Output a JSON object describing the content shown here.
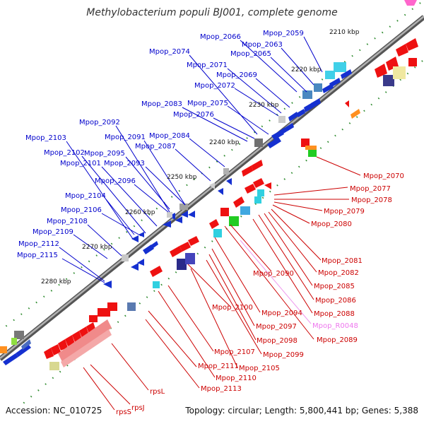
{
  "title": "Methylobacterium populi BJ001, complete genome",
  "accession": "Accession: NC_010725",
  "summary": "Topology: circular; Length: 5,800,441 bp; Genes: 5,388",
  "colors": {
    "forward_label": "#0000cc",
    "reverse_label": "#cc0000",
    "rna_label": "#ee77ee",
    "backbone": "#808080",
    "tick": "#2e8b2e"
  },
  "ticks": [
    "2210 kbp",
    "2220 kbp",
    "2230 kbp",
    "2240 kbp",
    "2250 kbp",
    "2260 kbp",
    "2270 kbp",
    "2280 kbp"
  ],
  "forward_labels": [
    "Mpop_2059",
    "Mpop_2063",
    "Mpop_2065",
    "Mpop_2066",
    "Mpop_2069",
    "Mpop_2071",
    "Mpop_2072",
    "Mpop_2074",
    "Mpop_2075",
    "Mpop_2076",
    "Mpop_2083",
    "Mpop_2084",
    "Mpop_2087",
    "Mpop_2091",
    "Mpop_2092",
    "Mpop_2093",
    "Mpop_2095",
    "Mpop_2096",
    "Mpop_2101",
    "Mpop_2102",
    "Mpop_2103",
    "Mpop_2104",
    "Mpop_2106",
    "Mpop_2108",
    "Mpop_2109",
    "Mpop_2112",
    "Mpop_2115"
  ],
  "reverse_labels": [
    "Mpop_2070",
    "Mpop_2077",
    "Mpop_2078",
    "Mpop_2079",
    "Mpop_2080",
    "Mpop_2081",
    "Mpop_2082",
    "Mpop_2085",
    "Mpop_2086",
    "Mpop_2088",
    "Mpop_R0048",
    "Mpop_2089",
    "Mpop_2090",
    "Mpop_2094",
    "Mpop_2097",
    "Mpop_2098",
    "Mpop_2099",
    "Mpop_2100",
    "Mpop_2105",
    "Mpop_2107",
    "Mpop_2110",
    "Mpop_2111",
    "Mpop_2113",
    "rpsL",
    "rpsJ",
    "rpsS"
  ]
}
